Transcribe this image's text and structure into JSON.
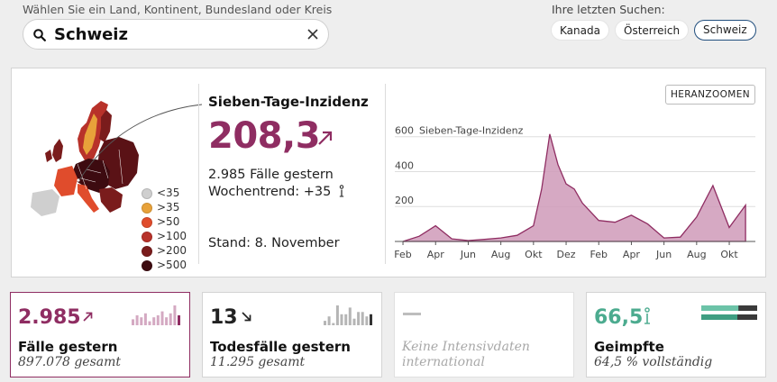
{
  "search": {
    "label": "Wählen Sie ein Land, Kontinent, Bundesland oder Kreis",
    "value": "Schweiz",
    "placeholder": ""
  },
  "recent": {
    "label": "Ihre letzten Suchen:",
    "chips": [
      "Kanada",
      "Österreich",
      "Schweiz"
    ],
    "active": "Schweiz"
  },
  "legend": [
    {
      "label": "<35",
      "color": "#cfcfcf"
    },
    {
      "label": ">35",
      "color": "#e8a23a"
    },
    {
      "label": ">50",
      "color": "#e04c2c"
    },
    {
      "label": ">100",
      "color": "#b8322a"
    },
    {
      "label": ">200",
      "color": "#7a1c1c"
    },
    {
      "label": ">500",
      "color": "#3d0b10"
    }
  ],
  "incidence": {
    "title": "Sieben-Tage-Inzidenz",
    "value": "208,3",
    "cases_yesterday": "2.985 Fälle gestern",
    "trend_label": "Wochentrend: +35",
    "as_of": "Stand: 8. November"
  },
  "zoom_button": "HERANZOOMEN",
  "chart_data": {
    "type": "area",
    "ylabel": "Sieben-Tage-Inzidenz",
    "y_ticks": [
      "600",
      "400",
      "200"
    ],
    "ylim": [
      0,
      650
    ],
    "x_ticks": [
      "Feb",
      "Apr",
      "Jun",
      "Aug",
      "Okt",
      "Dez",
      "Feb",
      "Apr",
      "Jun",
      "Aug",
      "Okt"
    ],
    "series": [
      {
        "x": [
          "2020-02",
          "2020-03",
          "2020-04",
          "2020-05",
          "2020-06",
          "2020-07",
          "2020-08",
          "2020-09",
          "2020-10",
          "2020-10",
          "2020-11",
          "2020-11",
          "2020-12",
          "2020-12",
          "2021-01",
          "2021-02",
          "2021-03",
          "2021-04",
          "2021-05",
          "2021-06",
          "2021-07",
          "2021-08",
          "2021-09",
          "2021-10",
          "2021-11"
        ],
        "values": [
          0,
          30,
          90,
          15,
          5,
          12,
          20,
          35,
          90,
          300,
          615,
          440,
          330,
          300,
          220,
          120,
          110,
          150,
          100,
          20,
          25,
          140,
          320,
          80,
          208
        ]
      }
    ],
    "color": "#8f2d62"
  },
  "cards": {
    "cases": {
      "value": "2.985",
      "title": "Fälle gestern",
      "sub": "897.078 gesamt",
      "color": "#8f2d62",
      "bars": [
        3,
        5,
        4,
        6,
        2,
        4,
        5,
        7,
        4,
        6,
        10,
        5
      ]
    },
    "deaths": {
      "value": "13",
      "title": "Todesfälle gestern",
      "sub": "11.295 gesamt",
      "color": "#222222",
      "bars": [
        2,
        4,
        1,
        9,
        5,
        5,
        8,
        3,
        6,
        6,
        4,
        5
      ]
    },
    "icu": {
      "text": "Keine Intensivdaten international"
    },
    "vaccinated": {
      "value": "66,5",
      "title": "Geimpfte",
      "sub": "64,5 % vollständig",
      "color": "#4cab8f",
      "first_dose": 0.665,
      "full": 0.645
    }
  }
}
